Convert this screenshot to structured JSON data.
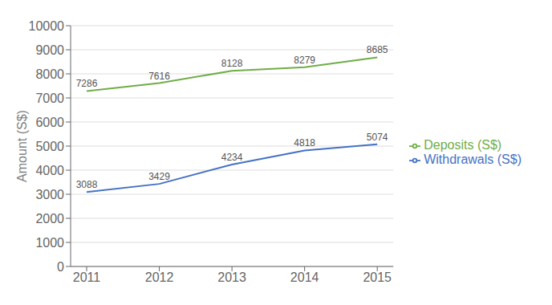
{
  "chart_data": {
    "type": "line",
    "categories": [
      "2011",
      "2012",
      "2013",
      "2014",
      "2015"
    ],
    "series": [
      {
        "name": "Deposits (S$)",
        "color": "#70AD47",
        "values": [
          7286,
          7616,
          8128,
          8279,
          8685
        ]
      },
      {
        "name": "Withdrawals (S$)",
        "color": "#4472C4",
        "values": [
          3088,
          3429,
          4234,
          4818,
          5074
        ]
      }
    ],
    "ylabel": "Amount (S$)",
    "ylim": [
      0,
      10000
    ],
    "yticks": [
      0,
      1000,
      2000,
      3000,
      4000,
      5000,
      6000,
      7000,
      8000,
      9000,
      10000
    ],
    "grid": true,
    "legend": "right",
    "data_labels": true
  }
}
